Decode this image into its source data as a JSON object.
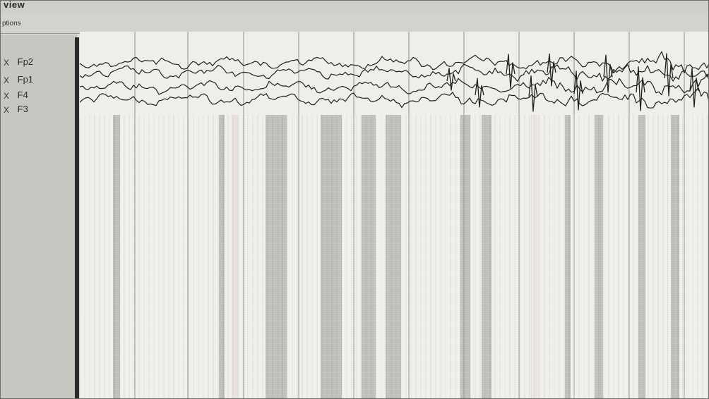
{
  "window": {
    "title": "view"
  },
  "menu": {
    "item_1": "ptions"
  },
  "channels": [
    {
      "label": "Fp2",
      "checked_glyph": "X"
    },
    {
      "label": "Fp1",
      "checked_glyph": "X"
    },
    {
      "label": "F4",
      "checked_glyph": "X"
    },
    {
      "label": "F3",
      "checked_glyph": "X"
    }
  ],
  "colors": {
    "trace": "#1f1f1f",
    "gridline": "#8f8f8a",
    "stripe_dark": "#2f3a2a",
    "stripe_light": "#b7b7b2",
    "stripe_pink": "#d3b7b3"
  }
}
